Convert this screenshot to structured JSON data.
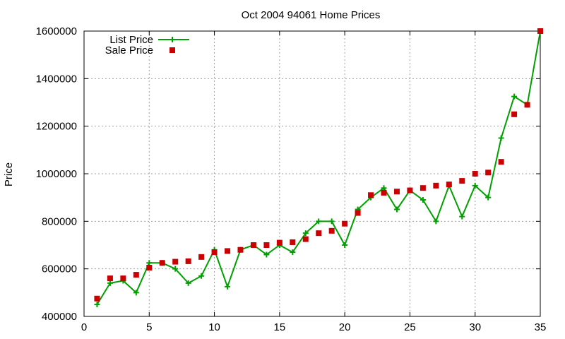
{
  "chart_data": {
    "type": "line",
    "title": "Oct 2004 94061 Home Prices",
    "xlabel": "",
    "ylabel": "Price",
    "xlim": [
      0,
      35
    ],
    "ylim": [
      400000,
      1600000
    ],
    "x_ticks": [
      0,
      5,
      10,
      15,
      20,
      25,
      30,
      35
    ],
    "y_ticks": [
      400000,
      600000,
      800000,
      1000000,
      1200000,
      1400000,
      1600000
    ],
    "grid": true,
    "legend_position": "top-left",
    "x": [
      1,
      2,
      3,
      4,
      5,
      6,
      7,
      8,
      9,
      10,
      11,
      12,
      13,
      14,
      15,
      16,
      17,
      18,
      19,
      20,
      21,
      22,
      23,
      24,
      25,
      26,
      27,
      28,
      29,
      30,
      31,
      32,
      33,
      34,
      35
    ],
    "series": [
      {
        "name": "List Price",
        "style": "line-plus",
        "color": "#00a000",
        "values": [
          450000,
          540000,
          550000,
          500000,
          625000,
          625000,
          600000,
          540000,
          570000,
          680000,
          525000,
          680000,
          700000,
          660000,
          700000,
          670000,
          750000,
          800000,
          800000,
          700000,
          850000,
          900000,
          940000,
          850000,
          930000,
          890000,
          800000,
          950000,
          820000,
          950000,
          900000,
          1150000,
          1325000,
          1290000,
          1600000
        ]
      },
      {
        "name": "Sale Price",
        "style": "square",
        "color": "#cc0000",
        "values": [
          475000,
          560000,
          560000,
          575000,
          605000,
          625000,
          630000,
          632000,
          650000,
          670000,
          675000,
          680000,
          700000,
          700000,
          710000,
          712000,
          725000,
          750000,
          760000,
          790000,
          835000,
          910000,
          920000,
          925000,
          930000,
          940000,
          950000,
          955000,
          970000,
          1000000,
          1005000,
          1050000,
          1250000,
          1290000,
          1600000
        ]
      }
    ]
  }
}
